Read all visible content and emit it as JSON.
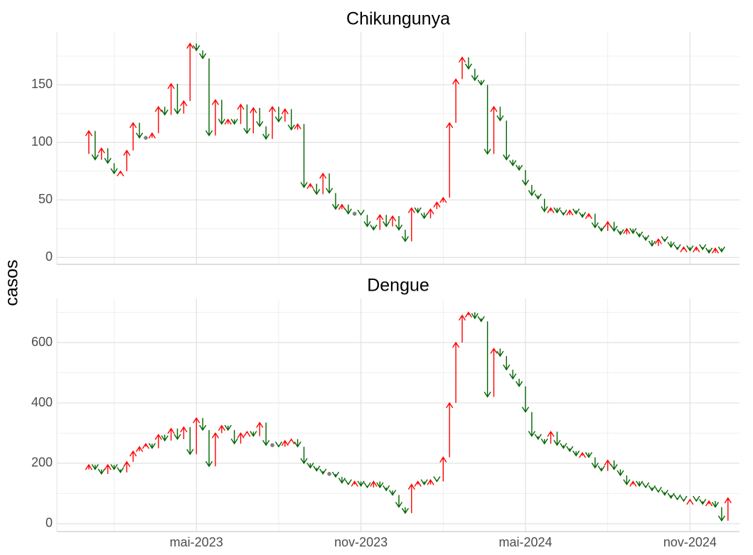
{
  "y_label": "casos",
  "colors": {
    "up": "#ff0000",
    "down": "#006400",
    "same": "#808080"
  },
  "categories": [
    null,
    null,
    null,
    null,
    null,
    null,
    null,
    null,
    null,
    null,
    null,
    null,
    null,
    null,
    null,
    null,
    null,
    null,
    "mai-2023",
    null,
    null,
    null,
    null,
    null,
    null,
    null,
    null,
    null,
    null,
    null,
    null,
    null,
    null,
    null,
    null,
    null,
    null,
    null,
    null,
    null,
    null,
    null,
    null,
    null,
    "nov-2023",
    null,
    null,
    null,
    null,
    null,
    null,
    null,
    null,
    null,
    null,
    null,
    null,
    null,
    null,
    null,
    null,
    null,
    null,
    null,
    null,
    null,
    null,
    null,
    null,
    null,
    "mai-2024",
    null,
    null,
    null,
    null,
    null,
    null,
    null,
    null,
    null,
    null,
    null,
    null,
    null,
    null,
    null,
    null,
    null,
    null,
    null,
    null,
    null,
    null,
    null,
    null,
    null,
    "nov-2024",
    null,
    null,
    null,
    null,
    null,
    null
  ],
  "chart_data": [
    {
      "type": "arrow",
      "title": "Chikungunya",
      "values": [
        90,
        110,
        85,
        95,
        82,
        73,
        75,
        93,
        117,
        104,
        104,
        108,
        131,
        124,
        151,
        125,
        136,
        186,
        180,
        173,
        106,
        137,
        116,
        120,
        116,
        133,
        108,
        130,
        114,
        103,
        131,
        118,
        129,
        111,
        116,
        61,
        64,
        55,
        73,
        56,
        42,
        46,
        38,
        38,
        37,
        27,
        24,
        37,
        27,
        36,
        24,
        14,
        43,
        39,
        34,
        42,
        48,
        52,
        117,
        155,
        174,
        164,
        154,
        150,
        90,
        131,
        119,
        85,
        80,
        76,
        63,
        54,
        51,
        40,
        43,
        39,
        37,
        41,
        38,
        35,
        38,
        26,
        23,
        31,
        23,
        20,
        25,
        21,
        18,
        15,
        10,
        16,
        14,
        9,
        7,
        9,
        6,
        9,
        7,
        4,
        8,
        5,
        null
      ],
      "ylim": [
        -6,
        196
      ],
      "yticks": [
        0,
        50,
        100,
        150
      ],
      "grid": true
    },
    {
      "type": "arrow",
      "title": "Dengue",
      "values": [
        180,
        195,
        180,
        165,
        195,
        180,
        170,
        205,
        240,
        255,
        265,
        250,
        295,
        275,
        315,
        280,
        320,
        230,
        350,
        310,
        190,
        300,
        325,
        310,
        265,
        300,
        305,
        290,
        335,
        260,
        260,
        255,
        275,
        280,
        255,
        200,
        185,
        175,
        165,
        165,
        155,
        135,
        130,
        140,
        125,
        120,
        140,
        120,
        110,
        95,
        55,
        35,
        130,
        140,
        130,
        145,
        140,
        220,
        400,
        600,
        690,
        700,
        680,
        670,
        420,
        580,
        555,
        510,
        480,
        455,
        370,
        290,
        280,
        265,
        305,
        260,
        250,
        240,
        225,
        235,
        220,
        185,
        175,
        210,
        180,
        160,
        130,
        140,
        125,
        120,
        110,
        105,
        95,
        85,
        80,
        75,
        80,
        75,
        65,
        75,
        55,
        10,
        85
      ],
      "ylim": [
        -26,
        746
      ],
      "yticks": [
        0,
        200,
        400,
        600
      ],
      "grid": true
    }
  ]
}
